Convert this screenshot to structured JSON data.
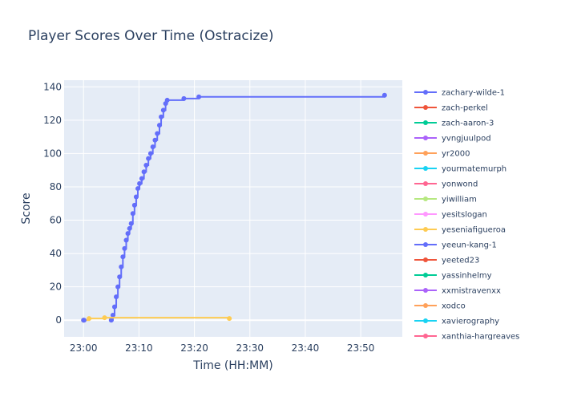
{
  "chart_data": {
    "type": "line",
    "title": "Player Scores Over Time (Ostracize)",
    "xlabel": "Time (HH:MM)",
    "ylabel": "Score",
    "x_ticks": [
      "23:00",
      "23:10",
      "23:20",
      "23:30",
      "23:40",
      "23:50"
    ],
    "x_range_minutes": [
      -3.5,
      57.5
    ],
    "y_ticks": [
      0,
      20,
      40,
      60,
      80,
      100,
      120,
      140
    ],
    "ylim": [
      -10,
      144
    ],
    "grid": true,
    "legend_position": "right",
    "series": [
      {
        "name": "zachary-wilde-1",
        "color": "#636efa",
        "points": [
          [
            5.0,
            0
          ],
          [
            5.3,
            3
          ],
          [
            5.6,
            8
          ],
          [
            5.9,
            14
          ],
          [
            6.2,
            20
          ],
          [
            6.5,
            26
          ],
          [
            6.8,
            32
          ],
          [
            7.1,
            38
          ],
          [
            7.4,
            43
          ],
          [
            7.7,
            48
          ],
          [
            8.0,
            52
          ],
          [
            8.3,
            55
          ],
          [
            8.6,
            58
          ],
          [
            8.9,
            64
          ],
          [
            9.2,
            69
          ],
          [
            9.5,
            74
          ],
          [
            9.8,
            79
          ],
          [
            10.1,
            82
          ],
          [
            10.5,
            85
          ],
          [
            10.9,
            89
          ],
          [
            11.3,
            93
          ],
          [
            11.7,
            97
          ],
          [
            12.1,
            100
          ],
          [
            12.5,
            104
          ],
          [
            12.9,
            108
          ],
          [
            13.3,
            112
          ],
          [
            13.7,
            117
          ],
          [
            14.0,
            122
          ],
          [
            14.4,
            126
          ],
          [
            14.8,
            130
          ],
          [
            15.1,
            132
          ],
          [
            18.1,
            133
          ],
          [
            20.8,
            134
          ],
          [
            54.3,
            135
          ]
        ]
      },
      {
        "name": "zach-perkel",
        "color": "#ef553b",
        "points": []
      },
      {
        "name": "zach-aaron-3",
        "color": "#00cc96",
        "points": []
      },
      {
        "name": "yvngjuulpod",
        "color": "#ab63fa",
        "points": []
      },
      {
        "name": "yr2000",
        "color": "#ffa15a",
        "points": []
      },
      {
        "name": "yourmatemurph",
        "color": "#19d3f3",
        "points": []
      },
      {
        "name": "yonwond",
        "color": "#ff6692",
        "points": []
      },
      {
        "name": "yiwilliam",
        "color": "#b6e880",
        "points": []
      },
      {
        "name": "yesitslogan",
        "color": "#ff97ff",
        "points": []
      },
      {
        "name": "yeseniafigueroa",
        "color": "#fecb52",
        "points": [
          [
            0.0,
            0
          ],
          [
            1.0,
            1
          ],
          [
            3.8,
            1.5
          ],
          [
            26.3,
            1
          ]
        ]
      },
      {
        "name": "yeeun-kang-1",
        "color": "#636efa",
        "points": [
          [
            0.0,
            0
          ],
          [
            0.1,
            0
          ]
        ]
      },
      {
        "name": "yeeted23",
        "color": "#ef553b",
        "points": []
      },
      {
        "name": "yassinhelmy",
        "color": "#00cc96",
        "points": []
      },
      {
        "name": "xxmistravenxx",
        "color": "#ab63fa",
        "points": []
      },
      {
        "name": "xodco",
        "color": "#ffa15a",
        "points": []
      },
      {
        "name": "xavierography",
        "color": "#19d3f3",
        "points": []
      },
      {
        "name": "xanthia-hargreaves",
        "color": "#ff6692",
        "points": []
      }
    ]
  }
}
